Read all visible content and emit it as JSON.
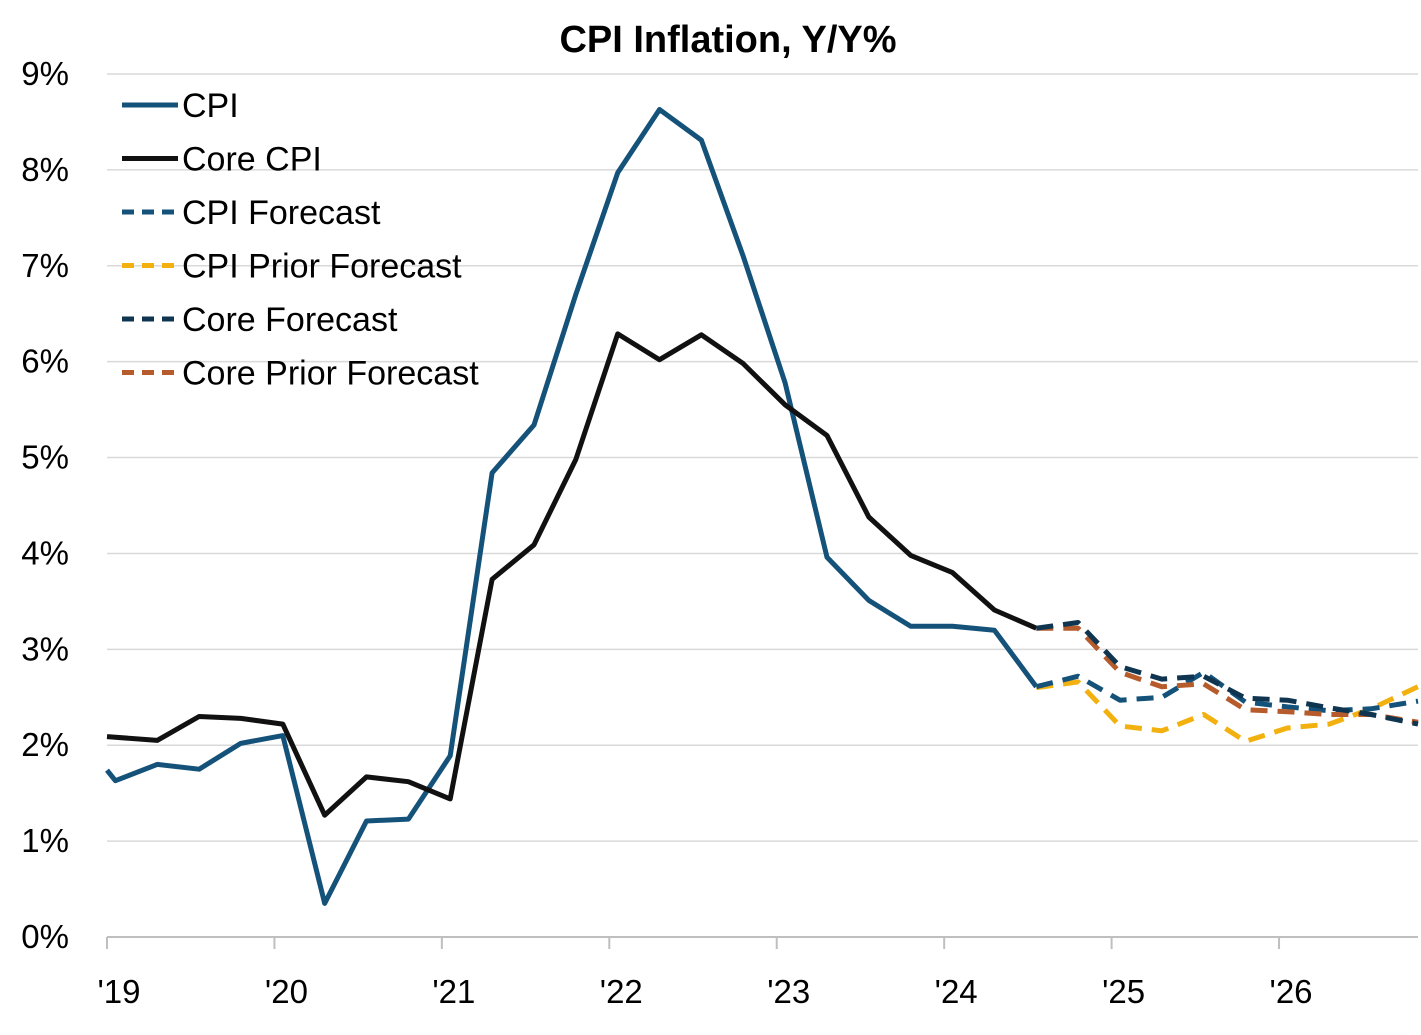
{
  "chart_data": {
    "type": "line",
    "title": "CPI Inflation, Y/Y%",
    "xlabel": "",
    "ylabel": "",
    "ylim": [
      0,
      9
    ],
    "xlim": [
      2019.0,
      2026.83
    ],
    "y_ticks": [
      0,
      1,
      2,
      3,
      4,
      5,
      6,
      7,
      8,
      9
    ],
    "y_tick_labels": [
      "0%",
      "1%",
      "2%",
      "3%",
      "4%",
      "5%",
      "6%",
      "7%",
      "8%",
      "9%"
    ],
    "x_ticks": [
      2019,
      2020,
      2021,
      2022,
      2023,
      2024,
      2025,
      2026
    ],
    "x_tick_labels": [
      "'19",
      "'20",
      "'21",
      "'22",
      "'23",
      "'24",
      "'25",
      "'26"
    ],
    "grid": true,
    "legend_position": "top-left",
    "series": [
      {
        "name": "CPI",
        "color": "#14527a",
        "dash": "solid",
        "points": [
          [
            2019.0,
            1.74
          ],
          [
            2019.05,
            1.63
          ],
          [
            2019.3,
            1.8
          ],
          [
            2019.55,
            1.75
          ],
          [
            2019.8,
            2.02
          ],
          [
            2020.05,
            2.1
          ],
          [
            2020.3,
            0.35
          ],
          [
            2020.55,
            1.21
          ],
          [
            2020.8,
            1.23
          ],
          [
            2021.05,
            1.89
          ],
          [
            2021.3,
            4.84
          ],
          [
            2021.55,
            5.34
          ],
          [
            2021.8,
            6.7
          ],
          [
            2022.05,
            7.97
          ],
          [
            2022.3,
            8.63
          ],
          [
            2022.55,
            8.31
          ],
          [
            2022.8,
            7.1
          ],
          [
            2023.05,
            5.78
          ],
          [
            2023.3,
            3.96
          ],
          [
            2023.55,
            3.51
          ],
          [
            2023.8,
            3.24
          ],
          [
            2024.05,
            3.24
          ],
          [
            2024.3,
            3.2
          ],
          [
            2024.55,
            2.61
          ]
        ]
      },
      {
        "name": "Core CPI",
        "color": "#111111",
        "dash": "solid",
        "points": [
          [
            2019.0,
            2.09
          ],
          [
            2019.3,
            2.05
          ],
          [
            2019.55,
            2.3
          ],
          [
            2019.8,
            2.28
          ],
          [
            2020.05,
            2.22
          ],
          [
            2020.3,
            1.27
          ],
          [
            2020.55,
            1.67
          ],
          [
            2020.8,
            1.62
          ],
          [
            2021.05,
            1.44
          ],
          [
            2021.3,
            3.73
          ],
          [
            2021.55,
            4.09
          ],
          [
            2021.8,
            4.98
          ],
          [
            2022.05,
            6.29
          ],
          [
            2022.3,
            6.02
          ],
          [
            2022.55,
            6.28
          ],
          [
            2022.8,
            5.98
          ],
          [
            2023.05,
            5.55
          ],
          [
            2023.3,
            5.23
          ],
          [
            2023.55,
            4.38
          ],
          [
            2023.8,
            3.98
          ],
          [
            2024.05,
            3.8
          ],
          [
            2024.3,
            3.41
          ],
          [
            2024.55,
            3.22
          ]
        ]
      },
      {
        "name": "CPI Forecast",
        "color": "#14527a",
        "dash": "dashed",
        "points": [
          [
            2024.55,
            2.61
          ],
          [
            2024.8,
            2.72
          ],
          [
            2025.05,
            2.47
          ],
          [
            2025.3,
            2.5
          ],
          [
            2025.55,
            2.76
          ],
          [
            2025.8,
            2.45
          ],
          [
            2026.05,
            2.4
          ],
          [
            2026.3,
            2.36
          ],
          [
            2026.55,
            2.38
          ],
          [
            2026.83,
            2.46
          ]
        ]
      },
      {
        "name": "CPI Prior Forecast",
        "color": "#f2b10e",
        "dash": "dashed",
        "points": [
          [
            2024.55,
            2.6
          ],
          [
            2024.8,
            2.66
          ],
          [
            2025.05,
            2.2
          ],
          [
            2025.3,
            2.15
          ],
          [
            2025.55,
            2.32
          ],
          [
            2025.8,
            2.04
          ],
          [
            2026.05,
            2.18
          ],
          [
            2026.3,
            2.22
          ],
          [
            2026.55,
            2.38
          ],
          [
            2026.83,
            2.61
          ]
        ]
      },
      {
        "name": "Core Forecast",
        "color": "#0f3550",
        "dash": "dashed",
        "points": [
          [
            2024.55,
            3.22
          ],
          [
            2024.8,
            3.28
          ],
          [
            2025.05,
            2.82
          ],
          [
            2025.3,
            2.69
          ],
          [
            2025.55,
            2.72
          ],
          [
            2025.8,
            2.49
          ],
          [
            2026.05,
            2.47
          ],
          [
            2026.3,
            2.39
          ],
          [
            2026.55,
            2.32
          ],
          [
            2026.83,
            2.22
          ]
        ]
      },
      {
        "name": "Core Prior Forecast",
        "color": "#b65b2b",
        "dash": "dashed",
        "points": [
          [
            2024.55,
            3.22
          ],
          [
            2024.8,
            3.22
          ],
          [
            2025.05,
            2.76
          ],
          [
            2025.3,
            2.61
          ],
          [
            2025.55,
            2.64
          ],
          [
            2025.8,
            2.37
          ],
          [
            2026.05,
            2.35
          ],
          [
            2026.3,
            2.32
          ],
          [
            2026.55,
            2.32
          ],
          [
            2026.83,
            2.24
          ]
        ]
      }
    ]
  }
}
